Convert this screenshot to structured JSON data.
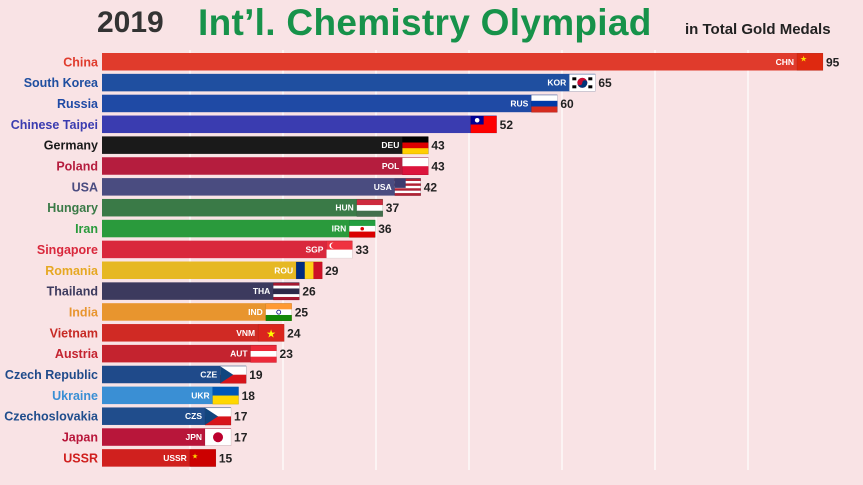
{
  "header": {
    "year": "2019",
    "title": "Int’l. Chemistry Olympiad",
    "subtitle": "in Total Gold Medals"
  },
  "chart_data": {
    "type": "bar",
    "orientation": "horizontal",
    "grid": true,
    "xlim": [
      0,
      95
    ],
    "series": [
      {
        "categories": [
          "China",
          "South Korea",
          "Russia",
          "Chinese Taipei",
          "Germany",
          "Poland",
          "USA",
          "Hungary",
          "Iran",
          "Singapore",
          "Romania",
          "Thailand",
          "India",
          "Vietnam",
          "Austria",
          "Czech Republic",
          "Ukraine",
          "Czechoslovakia",
          "Japan",
          "USSR"
        ],
        "codes": [
          "CHN",
          "KOR",
          "RUS",
          "",
          "DEU",
          "POL",
          "USA",
          "HUN",
          "IRN",
          "SGP",
          "ROU",
          "THA",
          "IND",
          "VNM",
          "AUT",
          "CZE",
          "UKR",
          "CZS",
          "JPN",
          "USSR"
        ],
        "values": [
          95,
          65,
          60,
          52,
          43,
          43,
          42,
          37,
          36,
          33,
          29,
          26,
          25,
          24,
          23,
          19,
          18,
          17,
          17,
          15
        ],
        "bar_colors": [
          "#e03b2c",
          "#1f4fa0",
          "#1f4aa5",
          "#3a3cb0",
          "#1a1a1a",
          "#b51d3e",
          "#4a4c80",
          "#3a7a47",
          "#2a9a3c",
          "#d9283c",
          "#e6b823",
          "#3c3a5e",
          "#e8952e",
          "#d02a24",
          "#c4232f",
          "#1f4a8a",
          "#3a8fd4",
          "#204d8c",
          "#b8163a",
          "#d0201e"
        ],
        "label_colors": [
          "#e03b2c",
          "#1f4fa0",
          "#1f4aa5",
          "#3a3cb0",
          "#1a1a1a",
          "#b51d3e",
          "#4a4c80",
          "#3a7a47",
          "#2a9a3c",
          "#d9283c",
          "#e6a823",
          "#3c3a5e",
          "#e8952e",
          "#c72a24",
          "#c4232f",
          "#1f4a8a",
          "#3a8fd4",
          "#204d8c",
          "#b8163a",
          "#d0201e"
        ],
        "flags": [
          "china",
          "korea",
          "russia",
          "taiwan",
          "germany",
          "poland",
          "usa",
          "hungary",
          "iran",
          "singapore",
          "romania",
          "thailand",
          "india",
          "vietnam",
          "austria",
          "czech",
          "ukraine",
          "czech",
          "japan",
          "ussr"
        ]
      }
    ]
  }
}
